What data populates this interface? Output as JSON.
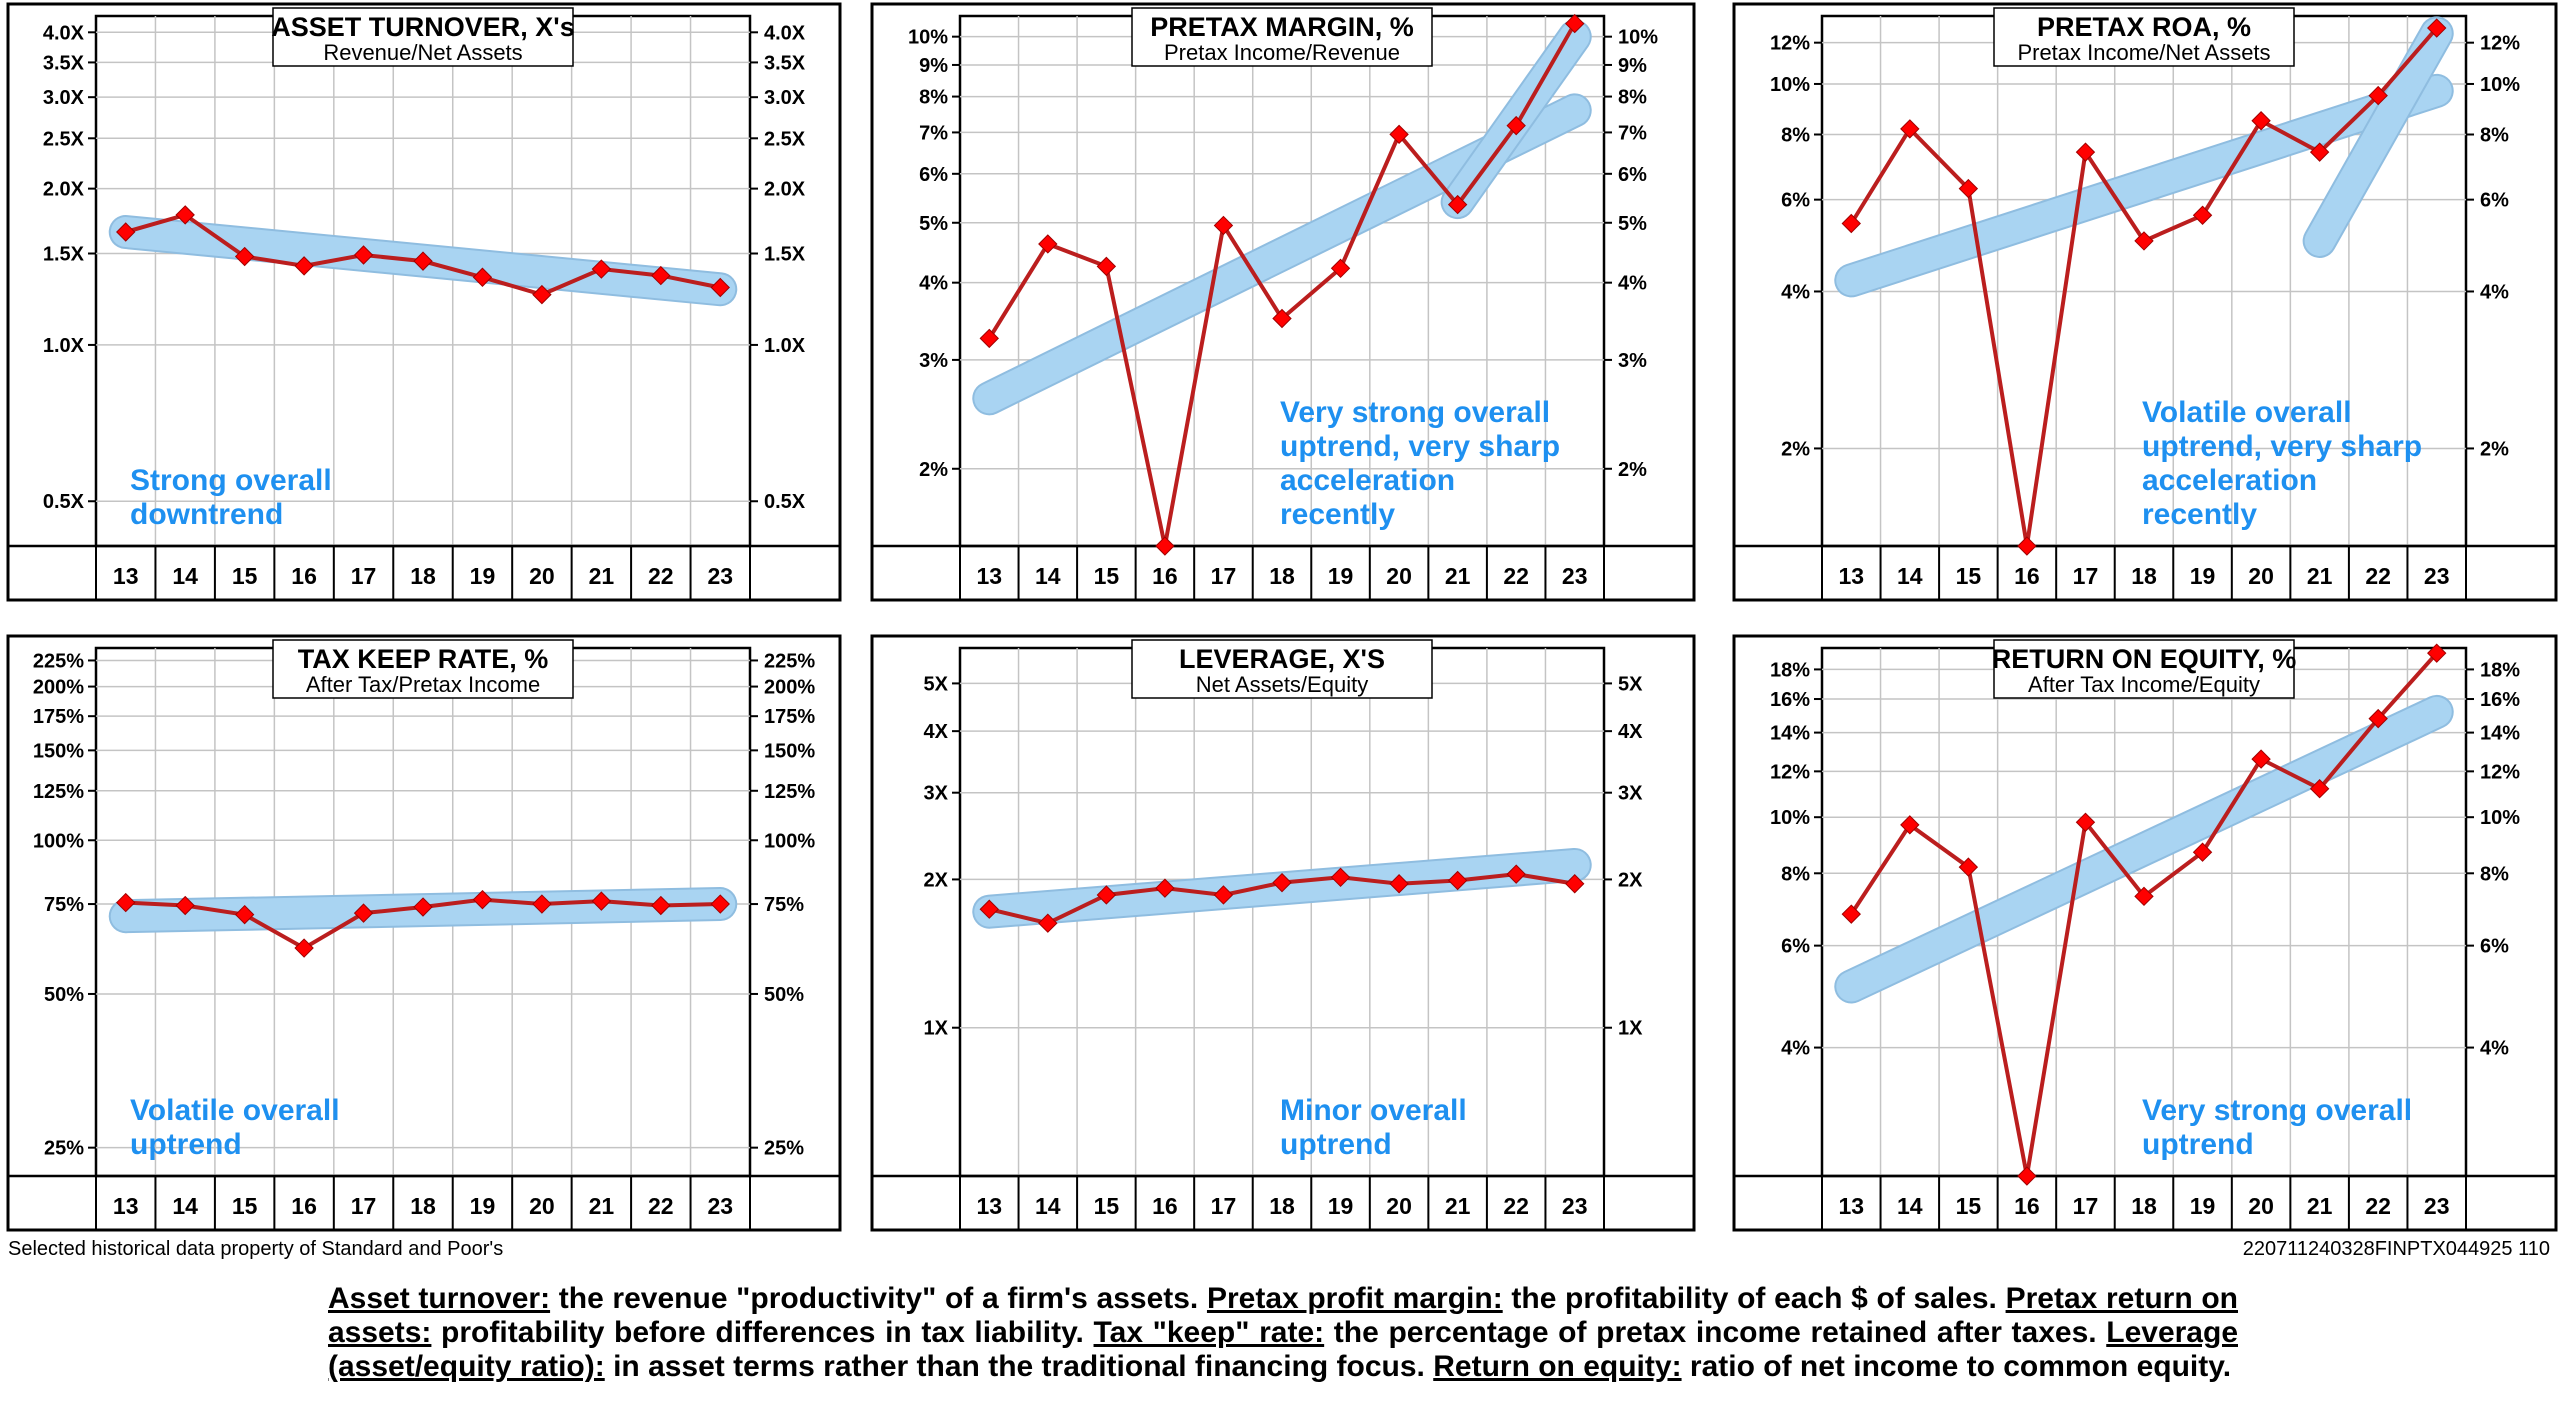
{
  "colors": {
    "trend": "#a9d4f2",
    "trend_edge": "#8fbde0",
    "line": "#bb1e1e",
    "marker": "#ff0000",
    "note": "#1e90f0",
    "grid": "#c4c4c4"
  },
  "chart_data": [
    {
      "type": "line",
      "scale": "log",
      "title": "ASSET TURNOVER, X's",
      "subtitle": "Revenue/Net Assets",
      "categories": [
        "13",
        "14",
        "15",
        "16",
        "17",
        "18",
        "19",
        "20",
        "21",
        "22",
        "23"
      ],
      "values": [
        1.65,
        1.78,
        1.48,
        1.42,
        1.49,
        1.45,
        1.35,
        1.25,
        1.4,
        1.36,
        1.29
      ],
      "trend": [
        1.65,
        1.28
      ],
      "ylim": [
        0.41,
        4.3
      ],
      "ticks": [
        {
          "v": 4.0,
          "label": "4.0X"
        },
        {
          "v": 3.5,
          "label": "3.5X"
        },
        {
          "v": 3.0,
          "label": "3.0X"
        },
        {
          "v": 2.5,
          "label": "2.5X"
        },
        {
          "v": 2.0,
          "label": "2.0X"
        },
        {
          "v": 1.5,
          "label": "1.5X"
        },
        {
          "v": 1.0,
          "label": "1.0X"
        },
        {
          "v": 0.5,
          "label": "0.5X"
        }
      ],
      "note": [
        "Strong overall",
        "downtrend"
      ]
    },
    {
      "type": "line",
      "scale": "log",
      "title": "PRETAX MARGIN, %",
      "subtitle": "Pretax Income/Revenue",
      "categories": [
        "13",
        "14",
        "15",
        "16",
        "17",
        "18",
        "19",
        "20",
        "21",
        "22",
        "23"
      ],
      "values": [
        3.25,
        4.62,
        4.25,
        1.5,
        4.95,
        3.5,
        4.22,
        6.95,
        5.35,
        7.18,
        10.5
      ],
      "trend": [
        2.6,
        7.6
      ],
      "trend2": [
        5.4,
        10.0
      ],
      "ylim": [
        1.5,
        10.8
      ],
      "ticks": [
        {
          "v": 10,
          "label": "10%"
        },
        {
          "v": 9,
          "label": "9%"
        },
        {
          "v": 8,
          "label": "8%"
        },
        {
          "v": 7,
          "label": "7%"
        },
        {
          "v": 6,
          "label": "6%"
        },
        {
          "v": 5,
          "label": "5%"
        },
        {
          "v": 4,
          "label": "4%"
        },
        {
          "v": 3,
          "label": "3%"
        },
        {
          "v": 2,
          "label": "2%"
        }
      ],
      "note": [
        "Very strong overall",
        "uptrend, very sharp",
        "acceleration",
        "recently"
      ]
    },
    {
      "type": "line",
      "scale": "log",
      "title": "PRETAX ROA, %",
      "subtitle": "Pretax Income/Net Assets",
      "categories": [
        "13",
        "14",
        "15",
        "16",
        "17",
        "18",
        "19",
        "20",
        "21",
        "22",
        "23"
      ],
      "values": [
        5.4,
        8.2,
        6.3,
        1.3,
        7.4,
        5.0,
        5.6,
        8.5,
        7.4,
        9.5,
        12.8
      ],
      "trend": [
        4.2,
        9.7
      ],
      "trend2": [
        5.0,
        12.5
      ],
      "ylim": [
        1.3,
        13.5
      ],
      "ticks": [
        {
          "v": 12,
          "label": "12%"
        },
        {
          "v": 10,
          "label": "10%"
        },
        {
          "v": 8,
          "label": "8%"
        },
        {
          "v": 6,
          "label": "6%"
        },
        {
          "v": 4,
          "label": "4%"
        },
        {
          "v": 2,
          "label": "2%"
        }
      ],
      "note": [
        "Volatile overall",
        "uptrend, very sharp",
        "acceleration",
        "recently"
      ]
    },
    {
      "type": "line",
      "scale": "log",
      "title": "TAX KEEP RATE, %",
      "subtitle": "After Tax/Pretax Income",
      "categories": [
        "13",
        "14",
        "15",
        "16",
        "17",
        "18",
        "19",
        "20",
        "21",
        "22",
        "23"
      ],
      "values": [
        75.5,
        74.5,
        71.5,
        61.5,
        72.0,
        74.0,
        76.5,
        75.0,
        76.0,
        74.5,
        75.0
      ],
      "trend": [
        71,
        75
      ],
      "ylim": [
        22,
        238
      ],
      "ticks": [
        {
          "v": 225,
          "label": "225%"
        },
        {
          "v": 200,
          "label": "200%"
        },
        {
          "v": 175,
          "label": "175%"
        },
        {
          "v": 150,
          "label": "150%"
        },
        {
          "v": 125,
          "label": "125%"
        },
        {
          "v": 100,
          "label": "100%"
        },
        {
          "v": 75,
          "label": "75%"
        },
        {
          "v": 50,
          "label": "50%"
        },
        {
          "v": 25,
          "label": "25%"
        }
      ],
      "note": [
        "Volatile overall",
        "uptrend"
      ]
    },
    {
      "type": "line",
      "scale": "log",
      "title": "LEVERAGE, X'S",
      "subtitle": "Net Assets/Equity",
      "categories": [
        "13",
        "14",
        "15",
        "16",
        "17",
        "18",
        "19",
        "20",
        "21",
        "22",
        "23"
      ],
      "values": [
        1.74,
        1.63,
        1.86,
        1.92,
        1.86,
        1.97,
        2.02,
        1.96,
        1.99,
        2.05,
        1.96
      ],
      "trend": [
        1.72,
        2.14
      ],
      "ylim": [
        0.5,
        5.9
      ],
      "ticks": [
        {
          "v": 5,
          "label": "5X"
        },
        {
          "v": 4,
          "label": "4X"
        },
        {
          "v": 3,
          "label": "3X"
        },
        {
          "v": 2,
          "label": "2X"
        },
        {
          "v": 1,
          "label": "1X"
        }
      ],
      "note": [
        "Minor overall",
        "uptrend"
      ]
    },
    {
      "type": "line",
      "scale": "log",
      "title": "RETURN ON EQUITY, %",
      "subtitle": "After Tax Income/Equity",
      "categories": [
        "13",
        "14",
        "15",
        "16",
        "17",
        "18",
        "19",
        "20",
        "21",
        "22",
        "23"
      ],
      "values": [
        6.8,
        9.7,
        8.2,
        2.4,
        9.8,
        7.3,
        8.7,
        12.6,
        11.2,
        14.8,
        19.2
      ],
      "trend": [
        5.1,
        15.2
      ],
      "ylim": [
        2.4,
        19.6
      ],
      "ticks": [
        {
          "v": 18,
          "label": "18%"
        },
        {
          "v": 16,
          "label": "16%"
        },
        {
          "v": 14,
          "label": "14%"
        },
        {
          "v": 12,
          "label": "12%"
        },
        {
          "v": 10,
          "label": "10%"
        },
        {
          "v": 8,
          "label": "8%"
        },
        {
          "v": 6,
          "label": "6%"
        },
        {
          "v": 4,
          "label": "4%"
        }
      ],
      "note": [
        "Very strong overall",
        "uptrend"
      ]
    }
  ],
  "footer": {
    "source": "Selected historical data property of Standard and Poor's",
    "code": "220711240328FINPTX044925 110"
  },
  "description": [
    {
      "term": "Asset turnover:",
      "text": " the revenue \"productivity\" of a firm's assets. "
    },
    {
      "term": "Pretax profit margin:",
      "text": " the profitability of each $ of sales. "
    },
    {
      "term": "Pretax return on assets:",
      "text": " profitability before differences in tax liability. "
    },
    {
      "term": "Tax \"keep\" rate:",
      "text": " the percentage of pretax income retained after taxes. "
    },
    {
      "term": "Leverage (asset/equity ratio):",
      "text": " in asset terms rather than the traditional financing focus. "
    },
    {
      "term": "Return on equity:",
      "text": " ratio of net income to common equity."
    }
  ]
}
